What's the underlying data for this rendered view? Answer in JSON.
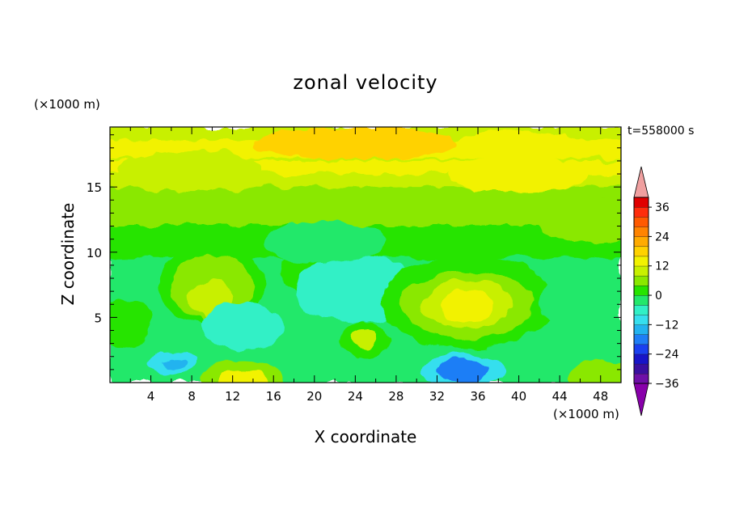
{
  "title": "zonal velocity",
  "time_label": "t=558000 s",
  "chart_data": {
    "type": "heatmap",
    "title": "zonal velocity",
    "xlabel": "X coordinate",
    "ylabel": "Z coordinate",
    "x_unit": "(×1000 m)",
    "z_unit": "(×1000 m)",
    "xlim": [
      0,
      50
    ],
    "ylim": [
      0,
      19.6
    ],
    "x_ticks": [
      "4",
      "8",
      "12",
      "16",
      "20",
      "24",
      "28",
      "32",
      "36",
      "40",
      "44",
      "48"
    ],
    "y_ticks": [
      "5",
      "10",
      "15"
    ],
    "colorbar": {
      "tick_labels": [
        "36",
        "24",
        "12",
        "0",
        "−12",
        "−24",
        "−36"
      ],
      "colors": [
        "#6f0fa8",
        "#3a0fa0",
        "#1814c8",
        "#1a40f0",
        "#1f7ef6",
        "#23b3ef",
        "#36dfee",
        "#31f0c6",
        "#23e86b",
        "#27e400",
        "#8ae800",
        "#c8f000",
        "#f2f200",
        "#ffd200",
        "#ffab00",
        "#ff8400",
        "#ff5a00",
        "#ff2d0c",
        "#e00000"
      ],
      "over_color": "#f0a0a0",
      "under_color": "#8800aa"
    },
    "features": [
      {
        "x": 10,
        "z": 19,
        "value": 12
      },
      {
        "x": 24,
        "z": 17,
        "value": 14
      },
      {
        "x": 40,
        "z": 18.5,
        "value": 10
      },
      {
        "x": 25,
        "z": 13,
        "value": 4
      },
      {
        "x": 10,
        "z": 7.5,
        "value": 6
      },
      {
        "x": 22,
        "z": 8,
        "value": -4
      },
      {
        "x": 35,
        "z": 6,
        "value": 14
      },
      {
        "x": 12,
        "z": 4.5,
        "value": -10
      },
      {
        "x": 34,
        "z": 1,
        "value": -22
      },
      {
        "x": 6,
        "z": 1.5,
        "value": -16
      },
      {
        "x": 13,
        "z": 0.3,
        "value": 12
      },
      {
        "x": 25,
        "z": 3.2,
        "value": 4
      }
    ]
  }
}
